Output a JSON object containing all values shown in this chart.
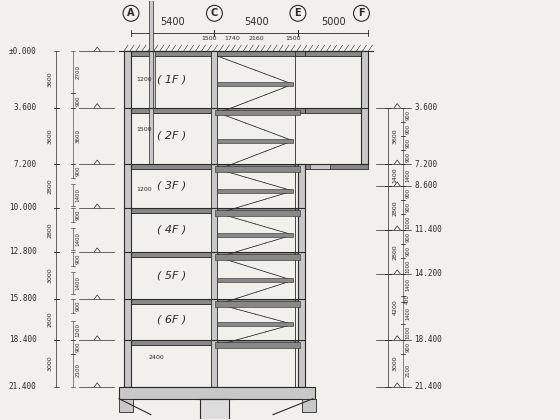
{
  "bg_color": "#f2f0ed",
  "line_color": "#2a2a2a",
  "wall_fill": "#c8c8c8",
  "slab_fill": "#888888",
  "floor_labels": [
    "( 1F )",
    "( 2F )",
    "( 3F )",
    "( 4F )",
    "( 5F )",
    "( 6F )"
  ],
  "left_elevations": [
    0.0,
    3.6,
    7.2,
    10.0,
    12.8,
    15.8,
    18.4,
    21.4
  ],
  "left_elev_labels": [
    "±0.000",
    "3.600",
    "7.200",
    "10.000",
    "12.800",
    "15.800",
    "18.400",
    "21.400"
  ],
  "right_elevations": [
    3.6,
    7.2,
    8.6,
    11.4,
    14.2,
    18.4,
    21.4
  ],
  "right_elev_labels": [
    "3.600",
    "7.200",
    "8.600",
    "11.400",
    "14.200",
    "18.400",
    "21.400"
  ],
  "col_labels": [
    "A",
    "C",
    "E",
    "F"
  ],
  "col_dims": [
    "5400",
    "5400",
    "5000"
  ],
  "font_size_tiny": 4.5,
  "font_size_small": 5.5,
  "font_size_label": 7,
  "font_size_floor": 8
}
